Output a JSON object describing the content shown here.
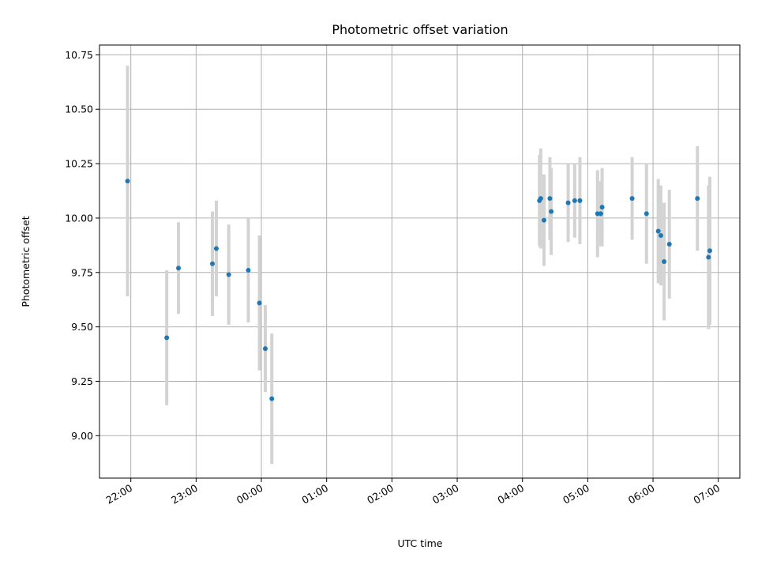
{
  "chart_data": {
    "type": "scatter",
    "title": "Photometric offset variation",
    "xlabel": "UTC time",
    "ylabel": "Photometric offset",
    "x_unit": "hours (UTC, continuing past midnight)",
    "x_range": [
      21.52,
      31.33
    ],
    "ylim": [
      8.805,
      10.795
    ],
    "grid": true,
    "legend": "none",
    "colors": {
      "point": "#1f77b4",
      "errorbar": "#d3d3d3",
      "grid": "#b0b0b0"
    },
    "x_ticks": [
      {
        "value": 22,
        "label": "22:00"
      },
      {
        "value": 23,
        "label": "23:00"
      },
      {
        "value": 24,
        "label": "00:00"
      },
      {
        "value": 25,
        "label": "01:00"
      },
      {
        "value": 26,
        "label": "02:00"
      },
      {
        "value": 27,
        "label": "03:00"
      },
      {
        "value": 28,
        "label": "04:00"
      },
      {
        "value": 29,
        "label": "05:00"
      },
      {
        "value": 30,
        "label": "06:00"
      },
      {
        "value": 31,
        "label": "07:00"
      }
    ],
    "y_ticks": [
      {
        "value": 9.0,
        "label": "9.00"
      },
      {
        "value": 9.25,
        "label": "9.25"
      },
      {
        "value": 9.5,
        "label": "9.50"
      },
      {
        "value": 9.75,
        "label": "9.75"
      },
      {
        "value": 10.0,
        "label": "10.00"
      },
      {
        "value": 10.25,
        "label": "10.25"
      },
      {
        "value": 10.5,
        "label": "10.50"
      },
      {
        "value": 10.75,
        "label": "10.75"
      }
    ],
    "points": [
      {
        "x": 21.95,
        "y": 10.17,
        "yerr": 0.53
      },
      {
        "x": 22.55,
        "y": 9.45,
        "yerr": 0.31
      },
      {
        "x": 22.73,
        "y": 9.77,
        "yerr": 0.21
      },
      {
        "x": 23.25,
        "y": 9.79,
        "yerr": 0.24
      },
      {
        "x": 23.31,
        "y": 9.86,
        "yerr": 0.22
      },
      {
        "x": 23.5,
        "y": 9.74,
        "yerr": 0.23
      },
      {
        "x": 23.8,
        "y": 9.76,
        "yerr": 0.24
      },
      {
        "x": 23.97,
        "y": 9.61,
        "yerr": 0.31
      },
      {
        "x": 24.06,
        "y": 9.4,
        "yerr": 0.2
      },
      {
        "x": 24.16,
        "y": 9.17,
        "yerr": 0.3
      },
      {
        "x": 28.26,
        "y": 10.08,
        "yerr": 0.21
      },
      {
        "x": 28.28,
        "y": 10.09,
        "yerr": 0.23
      },
      {
        "x": 28.33,
        "y": 9.99,
        "yerr": 0.21
      },
      {
        "x": 28.42,
        "y": 10.09,
        "yerr": 0.19
      },
      {
        "x": 28.44,
        "y": 10.03,
        "yerr": 0.2
      },
      {
        "x": 28.7,
        "y": 10.07,
        "yerr": 0.18
      },
      {
        "x": 28.8,
        "y": 10.08,
        "yerr": 0.17
      },
      {
        "x": 28.88,
        "y": 10.08,
        "yerr": 0.2
      },
      {
        "x": 29.15,
        "y": 10.02,
        "yerr": 0.2
      },
      {
        "x": 29.2,
        "y": 10.02,
        "yerr": 0.15
      },
      {
        "x": 29.22,
        "y": 10.05,
        "yerr": 0.18
      },
      {
        "x": 29.68,
        "y": 10.09,
        "yerr": 0.19
      },
      {
        "x": 29.9,
        "y": 10.02,
        "yerr": 0.23
      },
      {
        "x": 30.08,
        "y": 9.94,
        "yerr": 0.24
      },
      {
        "x": 30.12,
        "y": 9.92,
        "yerr": 0.23
      },
      {
        "x": 30.17,
        "y": 9.8,
        "yerr": 0.27
      },
      {
        "x": 30.25,
        "y": 9.88,
        "yerr": 0.25
      },
      {
        "x": 30.68,
        "y": 10.09,
        "yerr": 0.24
      },
      {
        "x": 30.85,
        "y": 9.82,
        "yerr": 0.33
      },
      {
        "x": 30.87,
        "y": 9.85,
        "yerr": 0.34
      }
    ]
  }
}
